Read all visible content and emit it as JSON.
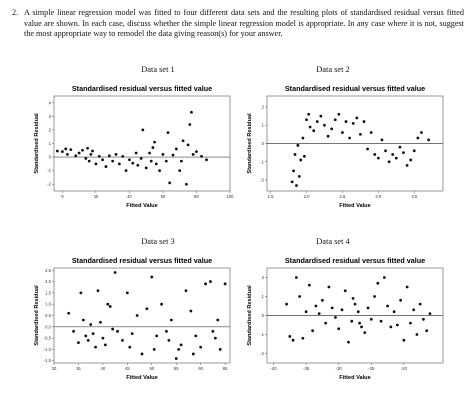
{
  "question": {
    "number": "2.",
    "text": "A simple linear regression model was fitted to four different data sets and the resulting plots of standardised residual versus fitted value are shown. In each case, discuss whether the simple linear regression model is appropriate. In any case where it is not, suggest the most appropriate way to remodel the data giving reason(s) for your answer."
  },
  "panels": [
    {
      "label": "Data set 1"
    },
    {
      "label": "Data set 2"
    },
    {
      "label": "Data set 3"
    },
    {
      "label": "Data set 4"
    }
  ],
  "chart_data": [
    {
      "type": "scatter",
      "title": "Standardised residual versus fitted value",
      "xlabel": "Fitted Value",
      "ylabel": "Standardised Residual",
      "xlim": [
        -5,
        100
      ],
      "ylim": [
        -2.5,
        4.5
      ],
      "xticks": [
        "0",
        "20",
        "40",
        "60",
        "80",
        "100"
      ],
      "yticks": [
        "-2",
        "-1",
        "0",
        "1",
        "2",
        "3",
        "4"
      ],
      "reference_line_y": 0,
      "points": [
        [
          -3,
          0.45
        ],
        [
          0,
          0.4
        ],
        [
          2,
          0.6
        ],
        [
          3,
          0.2
        ],
        [
          5,
          0.55
        ],
        [
          8,
          0.1
        ],
        [
          10,
          0.3
        ],
        [
          12,
          0.5
        ],
        [
          14,
          -0.1
        ],
        [
          15,
          0.65
        ],
        [
          16,
          -0.3
        ],
        [
          17,
          0.2
        ],
        [
          18,
          0.45
        ],
        [
          20,
          -0.5
        ],
        [
          22,
          0.05
        ],
        [
          24,
          -0.2
        ],
        [
          26,
          -0.7
        ],
        [
          28,
          0.1
        ],
        [
          30,
          -0.3
        ],
        [
          32,
          0.2
        ],
        [
          34,
          -0.5
        ],
        [
          36,
          0.05
        ],
        [
          38,
          -1.0
        ],
        [
          40,
          -0.2
        ],
        [
          42,
          -0.45
        ],
        [
          44,
          0.3
        ],
        [
          45,
          -0.6
        ],
        [
          47,
          -0.1
        ],
        [
          48,
          2.0
        ],
        [
          50,
          -0.8
        ],
        [
          52,
          0.3
        ],
        [
          53,
          -0.3
        ],
        [
          54,
          0.7
        ],
        [
          55,
          1.1
        ],
        [
          56,
          -0.5
        ],
        [
          58,
          -1.0
        ],
        [
          60,
          0.2
        ],
        [
          62,
          -0.3
        ],
        [
          63,
          1.8
        ],
        [
          64,
          -1.9
        ],
        [
          66,
          0.15
        ],
        [
          68,
          0.6
        ],
        [
          70,
          -1.0
        ],
        [
          71,
          -0.3
        ],
        [
          72,
          1.2
        ],
        [
          74,
          -2.0
        ],
        [
          75,
          0.9
        ],
        [
          76,
          2.4
        ],
        [
          77,
          3.3
        ],
        [
          78,
          0.2
        ],
        [
          80,
          0.4
        ],
        [
          83,
          0.05
        ],
        [
          86,
          -0.2
        ]
      ]
    },
    {
      "type": "scatter",
      "title": "Standardised residual versus fitted value",
      "xlabel": "Fitted Value",
      "ylabel": "Standardised Residual",
      "xlim": [
        1.45,
        3.9
      ],
      "ylim": [
        -2.6,
        2.6
      ],
      "xticks": [
        "1.5",
        "2.0",
        "2.5",
        "3.0",
        "3.5"
      ],
      "yticks": [
        "-2",
        "-1",
        "0",
        "1",
        "2"
      ],
      "reference_line_y": 0,
      "points": [
        [
          1.8,
          -2.1
        ],
        [
          1.82,
          -1.5
        ],
        [
          1.84,
          -0.6
        ],
        [
          1.86,
          -2.3
        ],
        [
          1.88,
          -0.1
        ],
        [
          1.9,
          -1.8
        ],
        [
          1.92,
          -0.9
        ],
        [
          1.95,
          0.3
        ],
        [
          1.97,
          -0.7
        ],
        [
          2.0,
          1.3
        ],
        [
          2.03,
          1.6
        ],
        [
          2.05,
          0.9
        ],
        [
          2.1,
          0.7
        ],
        [
          2.15,
          1.2
        ],
        [
          2.2,
          1.5
        ],
        [
          2.25,
          1.0
        ],
        [
          2.3,
          0.4
        ],
        [
          2.35,
          0.8
        ],
        [
          2.4,
          1.3
        ],
        [
          2.45,
          1.6
        ],
        [
          2.5,
          0.6
        ],
        [
          2.55,
          1.2
        ],
        [
          2.6,
          0.3
        ],
        [
          2.65,
          1.1
        ],
        [
          2.7,
          1.4
        ],
        [
          2.75,
          0.5
        ],
        [
          2.8,
          1.2
        ],
        [
          2.85,
          -0.3
        ],
        [
          2.9,
          0.6
        ],
        [
          2.95,
          -0.6
        ],
        [
          3.0,
          -0.8
        ],
        [
          3.05,
          0.2
        ],
        [
          3.1,
          -0.4
        ],
        [
          3.15,
          -1.0
        ],
        [
          3.2,
          -0.6
        ],
        [
          3.25,
          -0.8
        ],
        [
          3.3,
          -0.2
        ],
        [
          3.35,
          -0.5
        ],
        [
          3.4,
          -1.2
        ],
        [
          3.45,
          -0.9
        ],
        [
          3.5,
          -0.4
        ],
        [
          3.55,
          0.3
        ],
        [
          3.6,
          0.6
        ],
        [
          3.7,
          0.2
        ]
      ]
    },
    {
      "type": "scatter",
      "title": "Standardised residual versus fitted value",
      "xlabel": "Fitted Value",
      "ylabel": "Standardised Residual",
      "xlim": [
        30,
        66
      ],
      "ylim": [
        -1.6,
        2.6
      ],
      "xticks": [
        "30",
        "35",
        "40",
        "45",
        "50",
        "55",
        "60",
        "65"
      ],
      "yticks": [
        "-1.5",
        "-1.0",
        "-0.5",
        "0.0",
        "0.5",
        "1.0",
        "1.5",
        "2.0",
        "2.5"
      ],
      "reference_line_y": 0,
      "points": [
        [
          33,
          0.6
        ],
        [
          34,
          -0.2
        ],
        [
          35,
          -0.7
        ],
        [
          35.5,
          1.5
        ],
        [
          36,
          0.3
        ],
        [
          36.5,
          -0.4
        ],
        [
          37,
          -0.6
        ],
        [
          37.5,
          0.1
        ],
        [
          38,
          -0.3
        ],
        [
          38.5,
          -0.9
        ],
        [
          39,
          1.6
        ],
        [
          39.5,
          0.2
        ],
        [
          40,
          -0.5
        ],
        [
          40.5,
          -0.8
        ],
        [
          41,
          1.0
        ],
        [
          41.5,
          0.9
        ],
        [
          42,
          -0.1
        ],
        [
          42.5,
          2.4
        ],
        [
          43,
          -0.2
        ],
        [
          44,
          -0.6
        ],
        [
          45,
          1.5
        ],
        [
          45.5,
          -0.9
        ],
        [
          46,
          -0.3
        ],
        [
          47,
          0.5
        ],
        [
          48,
          -1.2
        ],
        [
          49,
          0.8
        ],
        [
          50,
          2.2
        ],
        [
          50.5,
          -1.0
        ],
        [
          51,
          -0.4
        ],
        [
          52,
          1.0
        ],
        [
          53,
          -0.2
        ],
        [
          53.5,
          -0.6
        ],
        [
          54,
          0.3
        ],
        [
          55,
          -1.4
        ],
        [
          55.5,
          -1.0
        ],
        [
          56,
          -0.8
        ],
        [
          57,
          1.6
        ],
        [
          58,
          0.7
        ],
        [
          59,
          -0.4
        ],
        [
          60,
          -0.9
        ],
        [
          61,
          1.9
        ],
        [
          62,
          2.0
        ],
        [
          62.5,
          -0.2
        ],
        [
          63,
          -0.5
        ],
        [
          64,
          -1.0
        ],
        [
          65,
          1.9
        ],
        [
          63.5,
          0.3
        ],
        [
          58.5,
          -1.2
        ]
      ]
    },
    {
      "type": "scatter",
      "title": "Standardised residual versus fitted value",
      "xlabel": "Fitted Value",
      "ylabel": "Standardised Residual",
      "xlim": [
        -41,
        -14
      ],
      "ylim": [
        -2.5,
        2.5
      ],
      "xticks": [
        "-40",
        "-35",
        "-30",
        "-25",
        "-20"
      ],
      "yticks": [
        "-2",
        "-1",
        "0",
        "1",
        "2"
      ],
      "reference_line_y": 0,
      "points": [
        [
          -38,
          0.6
        ],
        [
          -37.5,
          -1.1
        ],
        [
          -37,
          -1.3
        ],
        [
          -36.5,
          2.0
        ],
        [
          -36,
          1.0
        ],
        [
          -35.5,
          -1.2
        ],
        [
          -35,
          0.2
        ],
        [
          -34.5,
          1.6
        ],
        [
          -34,
          -0.8
        ],
        [
          -33.5,
          0.5
        ],
        [
          -33,
          0.1
        ],
        [
          -32.5,
          0.8
        ],
        [
          -32,
          -0.4
        ],
        [
          -31.5,
          1.5
        ],
        [
          -31,
          0.4
        ],
        [
          -30.5,
          -0.1
        ],
        [
          -30,
          -0.7
        ],
        [
          -29.5,
          0.3
        ],
        [
          -29,
          1.3
        ],
        [
          -28.5,
          -1.4
        ],
        [
          -28,
          -0.3
        ],
        [
          -27.5,
          0.6
        ],
        [
          -27,
          0.2
        ],
        [
          -26.5,
          -0.6
        ],
        [
          -26,
          -0.9
        ],
        [
          -25.5,
          0.4
        ],
        [
          -25,
          -0.2
        ],
        [
          -24.5,
          1.0
        ],
        [
          -24,
          1.7
        ],
        [
          -23.5,
          -0.3
        ],
        [
          -23,
          2.0
        ],
        [
          -22.5,
          0.5
        ],
        [
          -22,
          -0.6
        ],
        [
          -21.5,
          0.2
        ],
        [
          -21,
          -0.5
        ],
        [
          -20.5,
          0.8
        ],
        [
          -20,
          -1.3
        ],
        [
          -19.5,
          1.5
        ],
        [
          -19,
          -0.4
        ],
        [
          -18.5,
          0.3
        ],
        [
          -18,
          -1.0
        ],
        [
          -17.5,
          0.6
        ],
        [
          -17,
          -0.2
        ],
        [
          -16.5,
          -0.8
        ],
        [
          -16,
          0.1
        ],
        [
          -27.8,
          0.9
        ],
        [
          -26.8,
          -0.4
        ]
      ]
    }
  ]
}
